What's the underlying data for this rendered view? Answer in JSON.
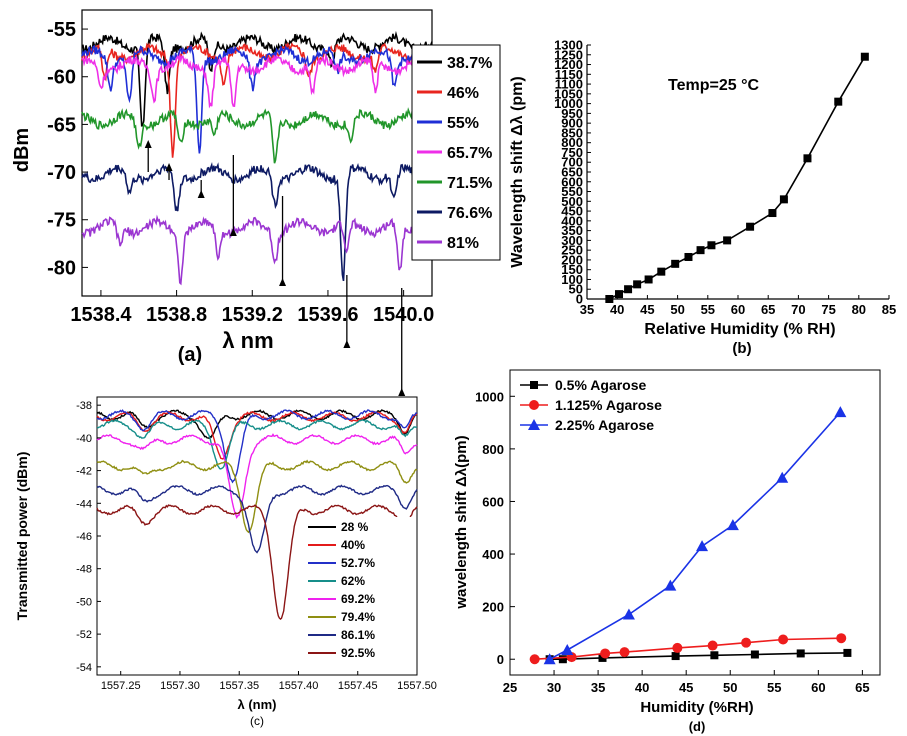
{
  "colors": {
    "c_38_7": "#000000",
    "c_46": "#e8251f",
    "c_55": "#1f2fd6",
    "c_65_7": "#ee2fe8",
    "c_71_5": "#21962a",
    "c_76_6": "#0d1a63",
    "c_81": "#9b36d1",
    "c_28": "#000000",
    "c_40": "#e31b1b",
    "c_52_7": "#2330c8",
    "c_62": "#168e8a",
    "c_69_2": "#ef22ee",
    "c_79_4": "#8f8f12",
    "c_86_1": "#1f2a86",
    "c_92_5": "#8b1515",
    "agarose_05": "#000000",
    "agarose_1125": "#ee1d1d",
    "agarose_225": "#1a33e6"
  },
  "panels": {
    "a": {
      "caption": "(a)",
      "ylabel": "dBm",
      "xlabel": "λ nm",
      "yticks": [
        "-55",
        "-60",
        "-65",
        "-70",
        "-75",
        "-80"
      ],
      "xticks": [
        "1538.4",
        "1538.8",
        "1539.2",
        "1539.6",
        "1540.0"
      ],
      "legend": [
        "38.7%",
        "46%",
        "55%",
        "65.7%",
        "71.5%",
        "76.6%",
        "81%"
      ]
    },
    "b": {
      "caption": "(b)",
      "ylabel": "Wavelength shift Δλ (pm)",
      "xlabel": "Relative Humidity (% RH)",
      "annotation": "Temp=25 °C",
      "yticks": [
        "0",
        "50",
        "100",
        "150",
        "200",
        "250",
        "300",
        "350",
        "400",
        "450",
        "500",
        "550",
        "600",
        "650",
        "700",
        "750",
        "800",
        "850",
        "900",
        "950",
        "1000",
        "1050",
        "1100",
        "1150",
        "1200",
        "1250",
        "1300"
      ],
      "xticks": [
        "35",
        "40",
        "45",
        "50",
        "55",
        "60",
        "65",
        "70",
        "75",
        "80",
        "85"
      ]
    },
    "c": {
      "caption": "(c)",
      "ylabel": "Transmitted power (dBm)",
      "xlabel": "λ (nm)",
      "yticks": [
        "-38",
        "-40",
        "-42",
        "-44",
        "-46",
        "-48",
        "-50",
        "-52",
        "-54"
      ],
      "xticks": [
        "1557.25",
        "1557.30",
        "1557.35",
        "1557.40",
        "1557.45",
        "1557.50"
      ],
      "legend": [
        "28 %",
        "40%",
        "52.7%",
        "62%",
        "69.2%",
        "79.4%",
        "86.1%",
        "92.5%"
      ]
    },
    "d": {
      "caption": "(d)",
      "ylabel": "wavelength shift Δλ(pm)",
      "xlabel": "Humidity (%RH)",
      "yticks": [
        "0",
        "200",
        "400",
        "600",
        "800",
        "1000"
      ],
      "xticks": [
        "25",
        "30",
        "35",
        "40",
        "45",
        "50",
        "55",
        "60",
        "65"
      ],
      "legend": [
        "0.5% Agarose",
        "1.125% Agarose",
        "2.25% Agarose"
      ]
    }
  },
  "chart_data": [
    {
      "type": "line",
      "panel": "a",
      "xlabel": "λ nm",
      "ylabel": "dBm",
      "xlim": [
        1538.3,
        1540.15
      ],
      "ylim": [
        -83,
        -53
      ],
      "series": [
        {
          "name": "38.7%",
          "color": "#000000",
          "base": -56.5,
          "dips": [
            [
              1538.62,
              9
            ],
            [
              1538.75,
              5
            ],
            [
              1538.98,
              3
            ],
            [
              1539.62,
              2
            ]
          ]
        },
        {
          "name": "46%",
          "color": "#e8251f",
          "base": -57.5,
          "dips": [
            [
              1538.42,
              3
            ],
            [
              1538.78,
              10
            ],
            [
              1539.05,
              3
            ],
            [
              1539.5,
              2
            ],
            [
              1539.85,
              2
            ]
          ]
        },
        {
          "name": "55%",
          "color": "#1f2fd6",
          "base": -57.8,
          "dips": [
            [
              1538.45,
              3
            ],
            [
              1538.55,
              5
            ],
            [
              1538.92,
              10
            ],
            [
              1539.2,
              3
            ],
            [
              1539.65,
              2
            ],
            [
              1539.95,
              3
            ]
          ]
        },
        {
          "name": "65.7%",
          "color": "#ee2fe8",
          "base": -58.8,
          "dips": [
            [
              1538.4,
              2
            ],
            [
              1538.68,
              3
            ],
            [
              1538.98,
              4
            ],
            [
              1539.1,
              5
            ],
            [
              1539.52,
              3
            ],
            [
              1539.85,
              3
            ]
          ]
        },
        {
          "name": "71.5%",
          "color": "#21962a",
          "base": -64.5,
          "dips": [
            [
              1538.6,
              3
            ],
            [
              1538.82,
              3
            ],
            [
              1539.0,
              2
            ],
            [
              1539.32,
              5
            ],
            [
              1539.72,
              2
            ]
          ]
        },
        {
          "name": "76.6%",
          "color": "#0d1a63",
          "base": -70.2,
          "dips": [
            [
              1538.55,
              2
            ],
            [
              1538.8,
              4
            ],
            [
              1539.32,
              3
            ],
            [
              1539.68,
              11
            ],
            [
              1539.95,
              3
            ]
          ]
        },
        {
          "name": "81%",
          "color": "#9b36d1",
          "base": -75.8,
          "dips": [
            [
              1538.5,
              2
            ],
            [
              1538.82,
              5
            ],
            [
              1539.02,
              3
            ],
            [
              1539.32,
              3
            ],
            [
              1539.7,
              3
            ],
            [
              1539.98,
              5
            ]
          ]
        }
      ],
      "arrows_at": [
        1538.65,
        1538.76,
        1538.93,
        1539.1,
        1539.36,
        1539.7,
        1539.99
      ]
    },
    {
      "type": "line",
      "panel": "b",
      "xlabel": "Relative Humidity (% RH)",
      "ylabel": "Wavelength shift Δλ (pm)",
      "xlim": [
        35,
        85
      ],
      "ylim": [
        0,
        1300
      ],
      "series": [
        {
          "name": "",
          "marker": "square",
          "color": "#000000",
          "x": [
            38.7,
            40.3,
            41.8,
            43.3,
            45.2,
            47.3,
            49.6,
            51.8,
            53.8,
            55.6,
            58.2,
            62,
            65.7,
            67.6,
            71.5,
            76.6,
            81
          ],
          "y": [
            0,
            25,
            50,
            75,
            100,
            140,
            180,
            215,
            250,
            275,
            300,
            370,
            440,
            510,
            720,
            1010,
            1240
          ]
        }
      ]
    },
    {
      "type": "line",
      "panel": "c",
      "xlabel": "λ (nm)",
      "ylabel": "Transmitted power (dBm)",
      "xlim": [
        1557.23,
        1557.5
      ],
      "ylim": [
        -54.5,
        -37.5
      ],
      "series": [
        {
          "name": "28 %",
          "color": "#000000",
          "base": -38.6,
          "dip_at": 1557.325,
          "dip_depth": 1.5
        },
        {
          "name": "40%",
          "color": "#e31b1b",
          "base": -38.7,
          "dip_at": 1557.335,
          "dip_depth": 2.5
        },
        {
          "name": "52.7%",
          "color": "#2330c8",
          "base": -38.6,
          "dip_at": 1557.345,
          "dip_depth": 4
        },
        {
          "name": "62%",
          "color": "#168e8a",
          "base": -39.2,
          "dip_at": 1557.335,
          "dip_depth": 2.5
        },
        {
          "name": "69.2%",
          "color": "#ef22ee",
          "base": -40.1,
          "dip_at": 1557.348,
          "dip_depth": 4.9
        },
        {
          "name": "79.4%",
          "color": "#8f8f12",
          "base": -41.7,
          "dip_at": 1557.358,
          "dip_depth": 3.8
        },
        {
          "name": "86.1%",
          "color": "#1f2a86",
          "base": -43.2,
          "dip_at": 1557.365,
          "dip_depth": 4.0
        },
        {
          "name": "92.5%",
          "color": "#8b1515",
          "base": -44.4,
          "dip_at": 1557.385,
          "dip_depth": 6.6
        }
      ]
    },
    {
      "type": "line",
      "panel": "d",
      "xlabel": "Humidity (%RH)",
      "ylabel": "wavelength shift Δλ(pm)",
      "xlim": [
        25,
        67
      ],
      "ylim": [
        -60,
        1100
      ],
      "series": [
        {
          "name": "0.5% Agarose",
          "color": "#000000",
          "marker": "square",
          "x": [
            29.5,
            31,
            35.5,
            43.8,
            48.2,
            52.8,
            58,
            63.3
          ],
          "y": [
            0,
            0,
            5,
            12,
            15,
            18,
            22,
            24
          ]
        },
        {
          "name": "1.125% Agarose",
          "color": "#ee1d1d",
          "marker": "circle",
          "x": [
            27.8,
            32,
            35.8,
            38,
            44,
            48,
            51.8,
            56,
            62.6
          ],
          "y": [
            0,
            8,
            22,
            27,
            43,
            52,
            63,
            75,
            80
          ]
        },
        {
          "name": "2.25% Agarose",
          "color": "#1a33e6",
          "marker": "triangle",
          "x": [
            29.5,
            31.5,
            38.5,
            43.2,
            46.8,
            50.3,
            55.9,
            62.5
          ],
          "y": [
            0,
            35,
            170,
            280,
            430,
            510,
            690,
            940
          ]
        }
      ]
    }
  ]
}
